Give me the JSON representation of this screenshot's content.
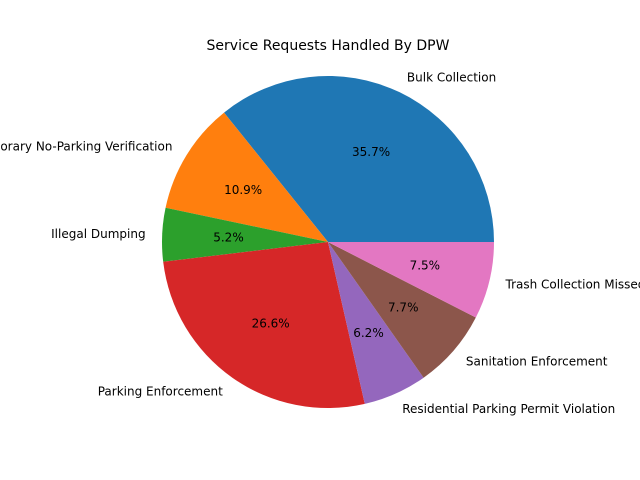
{
  "chart_data": {
    "type": "pie",
    "title": "Service Requests Handled By DPW",
    "labels": [
      "Bulk Collection",
      "Temporary No-Parking Verification",
      "Illegal Dumping",
      "Parking Enforcement",
      "Residential Parking Permit Violation",
      "Sanitation Enforcement",
      "Trash Collection Missed"
    ],
    "values": [
      35.7,
      10.9,
      5.2,
      26.6,
      6.2,
      7.7,
      7.5
    ],
    "pct_labels": [
      "35.7%",
      "10.9%",
      "5.2%",
      "26.6%",
      "6.2%",
      "7.7%",
      "7.5%"
    ],
    "colors": [
      "#1f77b4",
      "#ff7f0e",
      "#2ca02c",
      "#d62728",
      "#9467bd",
      "#8c564b",
      "#e377c2"
    ],
    "start_angle_deg": 0,
    "direction": "counterclockwise"
  }
}
